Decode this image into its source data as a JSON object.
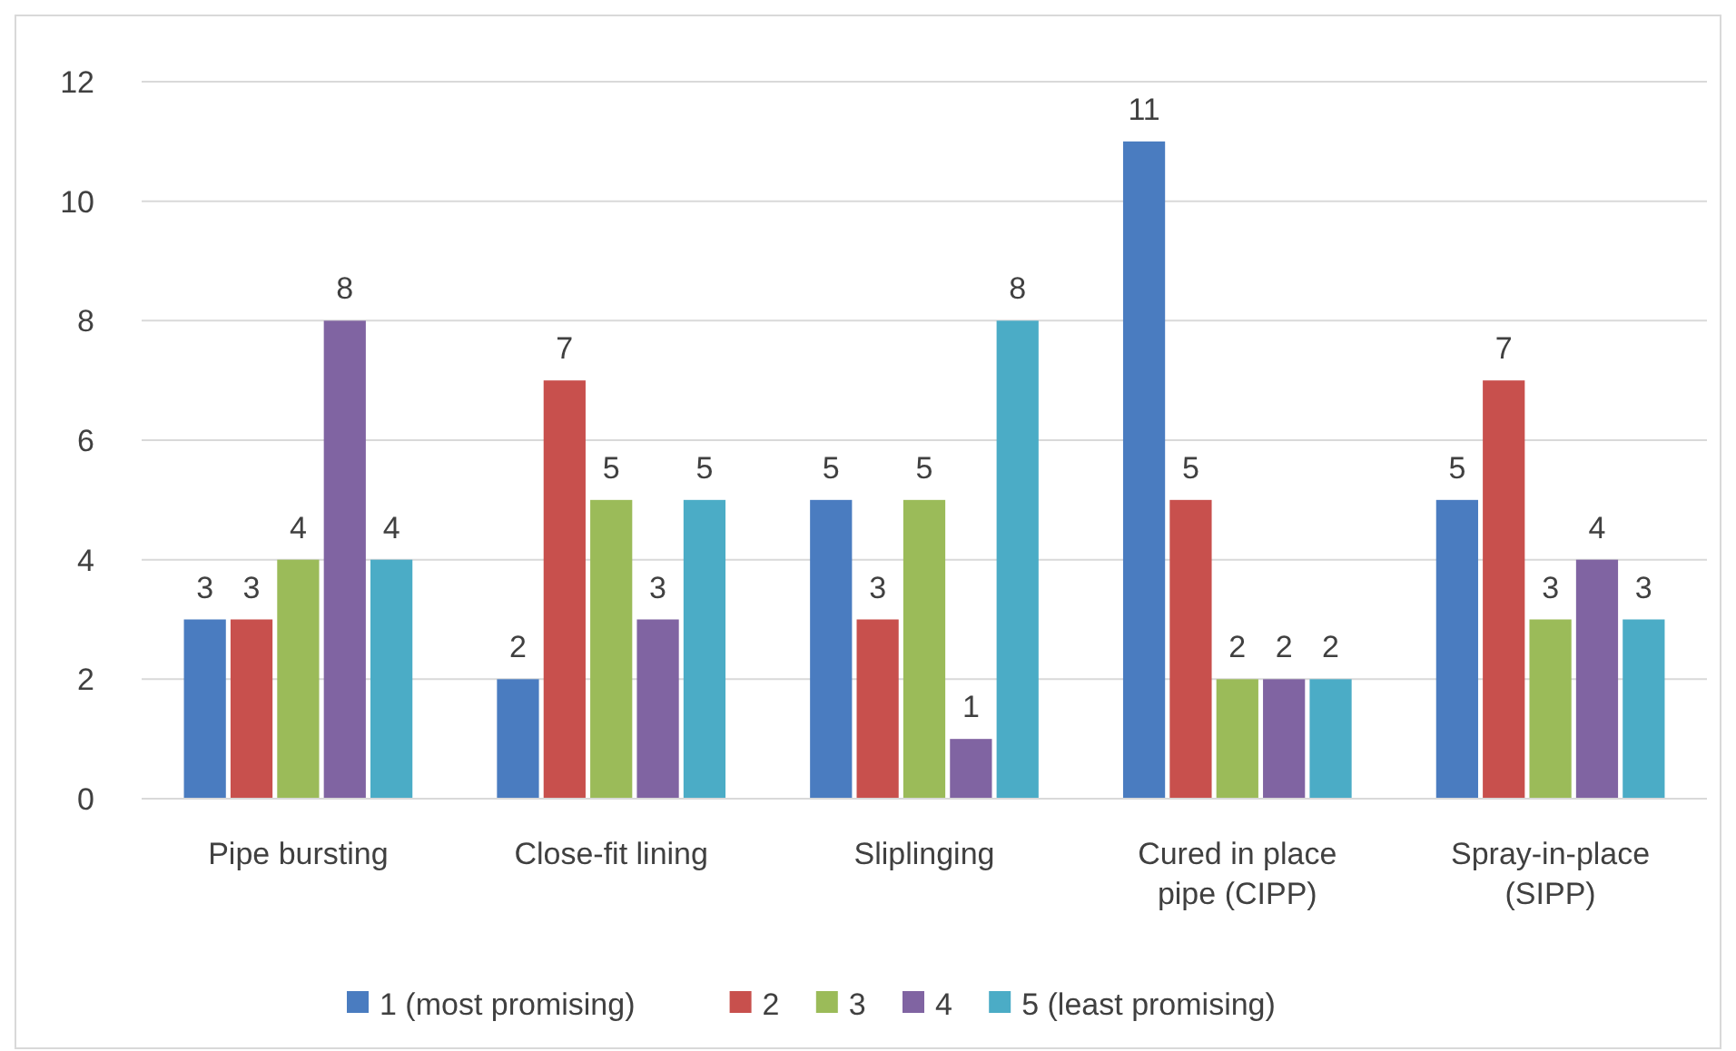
{
  "chart_data": {
    "type": "bar",
    "categories": [
      "Pipe bursting",
      "Close-fit lining",
      "Sliplinging",
      "Cured in place pipe (CIPP)",
      "Spray-in-place (SIPP)"
    ],
    "series": [
      {
        "name": "1 (most promising)",
        "color": "#4a7cc0",
        "values": [
          3,
          2,
          5,
          11,
          5
        ]
      },
      {
        "name": "2",
        "color": "#c8504d",
        "values": [
          3,
          7,
          3,
          5,
          7
        ]
      },
      {
        "name": "3",
        "color": "#9bbb59",
        "values": [
          4,
          5,
          5,
          2,
          3
        ]
      },
      {
        "name": "4",
        "color": "#8064a2",
        "values": [
          8,
          3,
          1,
          2,
          4
        ]
      },
      {
        "name": "5 (least promising)",
        "color": "#4bacc6",
        "values": [
          4,
          5,
          8,
          2,
          3
        ]
      }
    ],
    "ylim": [
      0,
      12
    ],
    "yticks": [
      0,
      2,
      4,
      6,
      8,
      10,
      12
    ],
    "grid": "y",
    "legend": "bottom",
    "data_labels": true
  }
}
